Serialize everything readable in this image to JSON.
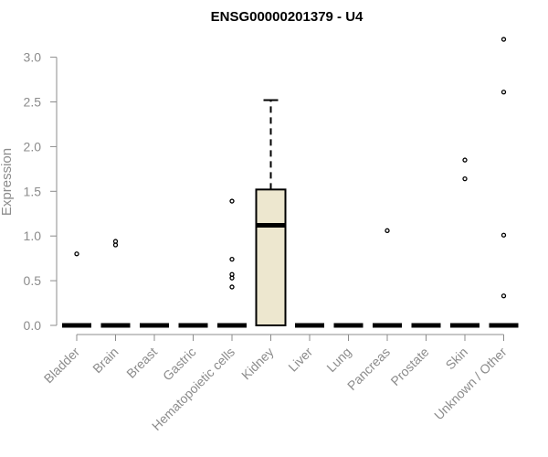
{
  "chart_data": {
    "type": "box",
    "title": "ENSG00000201379 - U4",
    "ylabel": "Expression",
    "xlabel": "",
    "ylim": [
      0,
      3.25
    ],
    "yticks": [
      "0.0",
      "0.5",
      "1.0",
      "1.5",
      "2.0",
      "2.5",
      "3.0"
    ],
    "ytick_values": [
      0,
      0.5,
      1.0,
      1.5,
      2.0,
      2.5,
      3.0
    ],
    "grid": false,
    "box_fill": "#ede7cf",
    "categories": [
      "Bladder",
      "Brain",
      "Breast",
      "Gastric",
      "Hematopoietic cells",
      "Kidney",
      "Liver",
      "Lung",
      "Pancreas",
      "Prostate",
      "Skin",
      "Unknown / Other"
    ],
    "boxes": [
      {
        "category": "Bladder",
        "q1": 0,
        "median": 0,
        "q3": 0,
        "whisker_low": 0,
        "whisker_high": 0,
        "outliers": [
          0.8
        ]
      },
      {
        "category": "Brain",
        "q1": 0,
        "median": 0,
        "q3": 0,
        "whisker_low": 0,
        "whisker_high": 0,
        "outliers": [
          0.9,
          0.94
        ]
      },
      {
        "category": "Breast",
        "q1": 0,
        "median": 0,
        "q3": 0,
        "whisker_low": 0,
        "whisker_high": 0,
        "outliers": []
      },
      {
        "category": "Gastric",
        "q1": 0,
        "median": 0,
        "q3": 0,
        "whisker_low": 0,
        "whisker_high": 0,
        "outliers": []
      },
      {
        "category": "Hematopoietic cells",
        "q1": 0,
        "median": 0,
        "q3": 0,
        "whisker_low": 0,
        "whisker_high": 0,
        "outliers": [
          0.43,
          0.53,
          0.57,
          0.74,
          1.39
        ]
      },
      {
        "category": "Kidney",
        "q1": 0,
        "median": 1.12,
        "q3": 1.52,
        "whisker_low": 0,
        "whisker_high": 2.52,
        "outliers": []
      },
      {
        "category": "Liver",
        "q1": 0,
        "median": 0,
        "q3": 0,
        "whisker_low": 0,
        "whisker_high": 0,
        "outliers": []
      },
      {
        "category": "Lung",
        "q1": 0,
        "median": 0,
        "q3": 0,
        "whisker_low": 0,
        "whisker_high": 0,
        "outliers": []
      },
      {
        "category": "Pancreas",
        "q1": 0,
        "median": 0,
        "q3": 0,
        "whisker_low": 0,
        "whisker_high": 0,
        "outliers": [
          1.06
        ]
      },
      {
        "category": "Prostate",
        "q1": 0,
        "median": 0,
        "q3": 0,
        "whisker_low": 0,
        "whisker_high": 0,
        "outliers": []
      },
      {
        "category": "Skin",
        "q1": 0,
        "median": 0,
        "q3": 0,
        "whisker_low": 0,
        "whisker_high": 0,
        "outliers": [
          1.64,
          1.85
        ]
      },
      {
        "category": "Unknown / Other",
        "q1": 0,
        "median": 0,
        "q3": 0,
        "whisker_low": 0,
        "whisker_high": 0,
        "outliers": [
          0.33,
          1.01,
          2.61,
          3.2
        ]
      }
    ]
  }
}
